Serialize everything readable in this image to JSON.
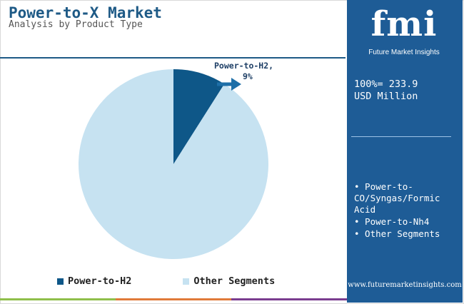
{
  "header": {
    "title": "Power-to-X Market",
    "subtitle": "Analysis by Product Type"
  },
  "chart_data": {
    "type": "pie",
    "categories": [
      "Power-to-H2",
      "Other Segments"
    ],
    "values": [
      9,
      91
    ],
    "colors": [
      "#0e5788",
      "#c6e2f1"
    ],
    "callout": {
      "label": "Power-to-H2,",
      "value": "9%"
    }
  },
  "legend": {
    "items": [
      {
        "label": "Power-to-H2",
        "color": "#0e5788"
      },
      {
        "label": "Other Segments",
        "color": "#c6e2f1"
      }
    ]
  },
  "sidebar": {
    "logo_text": "fmi",
    "logo_tagline": "Future Market Insights",
    "total_line1": "100%= 233.9",
    "total_line2": "USD Million",
    "segments": [
      "• Power-to-CO/Syngas/Formic Acid",
      "• Power-to-Nh4",
      "• Other Segments"
    ],
    "url": "www.futuremarketinsights.com"
  },
  "colors": {
    "brand": "#1e5a86",
    "sidebar_bg": "#1e5c96"
  }
}
